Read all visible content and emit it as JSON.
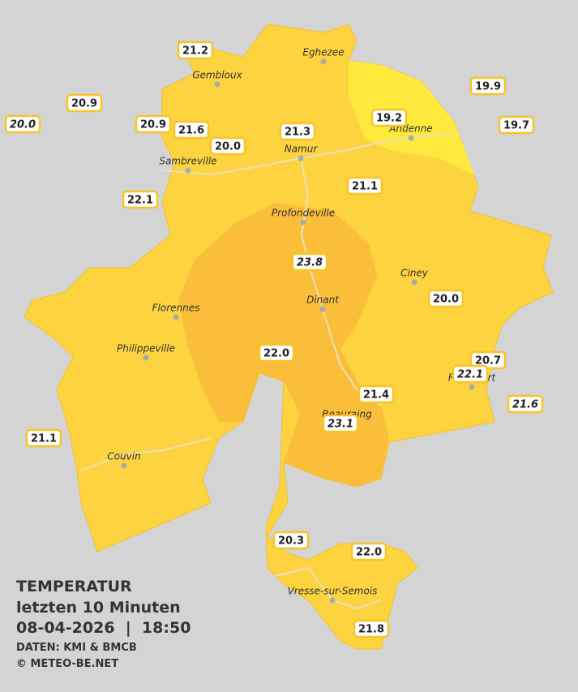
{
  "title": "TEMPERATUR",
  "subtitle": "letzten 10 Minuten",
  "datetime": "08-04-2026  |  18:50",
  "source": "DATEN: KMI & BMCB",
  "copyright": "© METEO-BE.NET",
  "cities": [
    "Eghezee",
    "Gembloux",
    "Andenne",
    "Namur",
    "Sambreville",
    "Profondeville",
    "Ciney",
    "Dinant",
    "Florennes",
    "Philippeville",
    "Rochefort",
    "Beauraing",
    "Couvin",
    "Vresse-sur-Semois"
  ],
  "stations": [
    "21.2",
    "20.9",
    "20.0",
    "20.9",
    "21.6",
    "20.0",
    "21.3",
    "19.2",
    "19.9",
    "19.7",
    "22.1",
    "21.1",
    "23.8",
    "20.0",
    "22.0",
    "20.7",
    "22.1",
    "21.4",
    "21.6",
    "23.1",
    "21.1",
    "20.3",
    "22.0",
    "21.8"
  ]
}
